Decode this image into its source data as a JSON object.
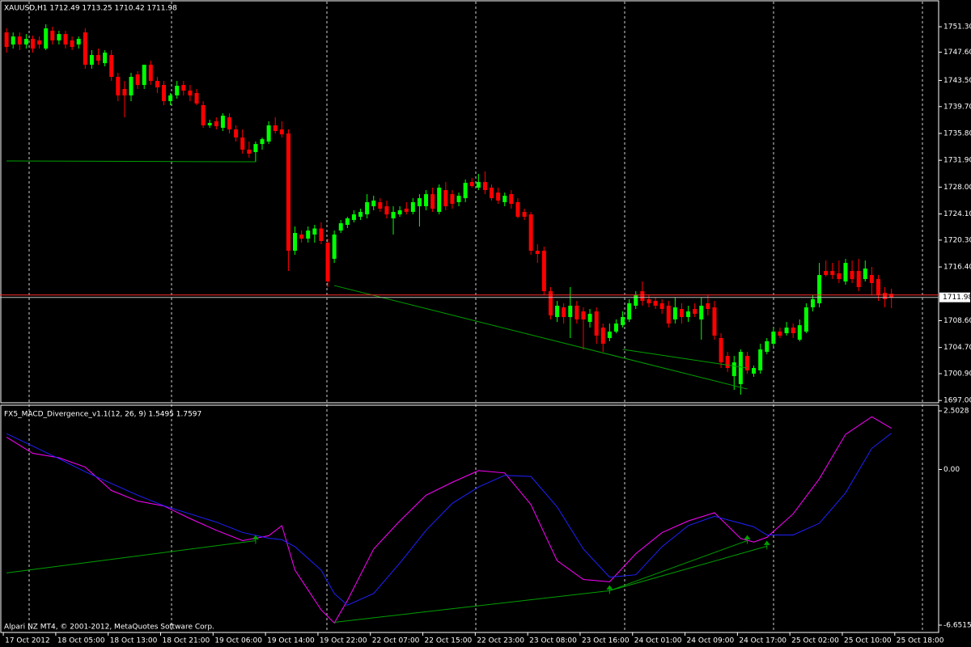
{
  "chart_data": [
    {
      "type": "candlestick",
      "title": "XAUUSD,H1  1712.49 1713.25 1710.42 1711.98",
      "up_color": "#00ff00",
      "down_color": "#ff0000",
      "line_color": "#00a000",
      "price_line_color": "#ff3030",
      "xlim": [
        -1,
        142.2
      ],
      "ylim": [
        1696.67,
        1754.95
      ],
      "yticks": [
        {
          "value": 1751.3,
          "label": "1751.30"
        },
        {
          "value": 1747.6,
          "label": "1747.60"
        },
        {
          "value": 1743.5,
          "label": "1743.50"
        },
        {
          "value": 1739.7,
          "label": "1739.70"
        },
        {
          "value": 1735.8,
          "label": "1735.80"
        },
        {
          "value": 1731.9,
          "label": "1731.90"
        },
        {
          "value": 1728.0,
          "label": "1728.00"
        },
        {
          "value": 1724.1,
          "label": "1724.10"
        },
        {
          "value": 1720.3,
          "label": "1720.30"
        },
        {
          "value": 1716.4,
          "label": "1716.40"
        },
        {
          "value": 1708.6,
          "label": "1708.60"
        },
        {
          "value": 1704.7,
          "label": "1704.70"
        },
        {
          "value": 1700.9,
          "label": "1700.90"
        },
        {
          "value": 1697.0,
          "label": "1697.00"
        }
      ],
      "ohlc": [
        [
          1750.48,
          1751.07,
          1747.54,
          1748.36
        ],
        [
          1748.72,
          1750.48,
          1748.13,
          1749.89
        ],
        [
          1749.89,
          1750.48,
          1747.9,
          1748.72
        ],
        [
          1748.72,
          1750.24,
          1748.13,
          1749.54
        ],
        [
          1749.54,
          1750.01,
          1747.54,
          1748.13
        ],
        [
          1749.31,
          1749.89,
          1748.13,
          1748.72
        ],
        [
          1748.13,
          1751.66,
          1747.9,
          1751.07
        ],
        [
          1750.72,
          1751.3,
          1748.72,
          1749.31
        ],
        [
          1749.31,
          1750.72,
          1748.72,
          1750.24
        ],
        [
          1750.24,
          1750.72,
          1748.13,
          1748.72
        ],
        [
          1749.31,
          1749.89,
          1747.9,
          1748.36
        ],
        [
          1748.72,
          1749.89,
          1748.13,
          1749.54
        ],
        [
          1750.48,
          1751.07,
          1745.19,
          1745.78
        ],
        [
          1745.78,
          1747.9,
          1745.19,
          1747.19
        ],
        [
          1747.19,
          1748.13,
          1745.78,
          1746.37
        ],
        [
          1746.01,
          1747.9,
          1745.55,
          1747.54
        ],
        [
          1747.19,
          1747.9,
          1743.43,
          1744.02
        ],
        [
          1744.02,
          1744.61,
          1740.49,
          1741.32
        ],
        [
          1742.26,
          1743.43,
          1738.14,
          1741.32
        ],
        [
          1741.32,
          1744.61,
          1740.49,
          1744.02
        ],
        [
          1744.37,
          1744.84,
          1742.26,
          1742.84
        ],
        [
          1742.84,
          1745.78,
          1742.26,
          1745.78
        ],
        [
          1745.78,
          1746.37,
          1742.84,
          1743.43
        ],
        [
          1743.43,
          1744.02,
          1741.67,
          1742.49
        ],
        [
          1742.84,
          1743.43,
          1739.91,
          1740.49
        ],
        [
          1740.49,
          1741.67,
          1739.91,
          1741.32
        ],
        [
          1741.32,
          1743.43,
          1740.84,
          1742.73
        ],
        [
          1742.84,
          1743.43,
          1741.32,
          1742.02
        ],
        [
          1742.02,
          1742.84,
          1740.49,
          1741.32
        ],
        [
          1741.67,
          1742.26,
          1739.91,
          1740.14
        ],
        [
          1739.91,
          1740.49,
          1736.62,
          1736.97
        ],
        [
          1736.97,
          1737.79,
          1736.62,
          1737.32
        ],
        [
          1737.56,
          1738.14,
          1736.38,
          1736.85
        ],
        [
          1736.62,
          1738.73,
          1736.15,
          1738.38
        ],
        [
          1738.14,
          1738.73,
          1735.79,
          1736.38
        ],
        [
          1736.38,
          1736.97,
          1734.62,
          1735.21
        ],
        [
          1735.21,
          1736.38,
          1732.86,
          1733.44
        ],
        [
          1733.44,
          1734.62,
          1732.27,
          1732.86
        ],
        [
          1733.09,
          1734.62,
          1731.68,
          1734.26
        ],
        [
          1734.26,
          1735.21,
          1733.44,
          1734.97
        ],
        [
          1734.62,
          1737.56,
          1734.26,
          1736.97
        ],
        [
          1736.97,
          1738.14,
          1735.79,
          1736.15
        ],
        [
          1736.38,
          1737.56,
          1735.21,
          1735.67
        ],
        [
          1735.79,
          1736.38,
          1715.82,
          1718.76
        ],
        [
          1718.76,
          1722.28,
          1718.17,
          1721.34
        ],
        [
          1721.11,
          1721.69,
          1719.93,
          1720.52
        ],
        [
          1720.52,
          1722.28,
          1719.93,
          1721.69
        ],
        [
          1721.11,
          1722.52,
          1719.93,
          1721.99
        ],
        [
          1721.99,
          1722.87,
          1719.7,
          1720.17
        ],
        [
          1719.93,
          1720.52,
          1713.47,
          1714.29
        ],
        [
          1717.58,
          1721.69,
          1716.99,
          1721.11
        ],
        [
          1721.69,
          1723.22,
          1721.34,
          1722.75
        ],
        [
          1722.52,
          1723.69,
          1722.05,
          1723.46
        ],
        [
          1723.22,
          1724.63,
          1722.87,
          1724.04
        ],
        [
          1723.69,
          1724.86,
          1723.22,
          1724.4
        ],
        [
          1724.04,
          1726.98,
          1723.46,
          1725.81
        ],
        [
          1725.22,
          1726.75,
          1724.63,
          1726.04
        ],
        [
          1725.81,
          1726.39,
          1724.4,
          1724.87
        ],
        [
          1725.22,
          1726.04,
          1723.46,
          1724.04
        ],
        [
          1723.46,
          1725.22,
          1721.11,
          1724.4
        ],
        [
          1724.04,
          1725.22,
          1723.69,
          1724.63
        ],
        [
          1724.87,
          1725.81,
          1724.04,
          1724.4
        ],
        [
          1724.4,
          1726.39,
          1724.04,
          1725.81
        ],
        [
          1725.22,
          1726.98,
          1722.28,
          1726.39
        ],
        [
          1725.22,
          1727.57,
          1724.63,
          1726.98
        ],
        [
          1726.98,
          1727.92,
          1724.4,
          1724.87
        ],
        [
          1724.4,
          1728.39,
          1724.04,
          1727.92
        ],
        [
          1727.57,
          1728.74,
          1724.63,
          1725.22
        ],
        [
          1726.98,
          1727.57,
          1724.87,
          1725.57
        ],
        [
          1725.81,
          1727.21,
          1725.22,
          1726.75
        ],
        [
          1726.39,
          1729.1,
          1725.81,
          1728.62
        ],
        [
          1728.74,
          1729.33,
          1727.92,
          1728.16
        ],
        [
          1727.92,
          1729.92,
          1727.57,
          1728.74
        ],
        [
          1728.74,
          1730.27,
          1726.98,
          1727.57
        ],
        [
          1727.92,
          1728.39,
          1726.04,
          1726.39
        ],
        [
          1727.21,
          1727.92,
          1725.57,
          1726.04
        ],
        [
          1725.81,
          1727.21,
          1725.22,
          1726.75
        ],
        [
          1726.98,
          1727.57,
          1724.87,
          1725.57
        ],
        [
          1725.81,
          1726.39,
          1723.46,
          1723.69
        ],
        [
          1724.4,
          1724.87,
          1723.22,
          1723.69
        ],
        [
          1724.04,
          1724.4,
          1718.17,
          1718.76
        ],
        [
          1718.76,
          1719.7,
          1716.99,
          1718.29
        ],
        [
          1718.76,
          1719.34,
          1712.29,
          1712.88
        ],
        [
          1712.88,
          1713.47,
          1708.77,
          1709.36
        ],
        [
          1709.12,
          1711.47,
          1708.41,
          1710.77
        ],
        [
          1710.53,
          1711.12,
          1708.18,
          1709.12
        ],
        [
          1709.12,
          1713.47,
          1706.07,
          1710.77
        ],
        [
          1710.77,
          1711.47,
          1708.18,
          1708.77
        ],
        [
          1709.94,
          1710.53,
          1704.42,
          1708.77
        ],
        [
          1708.41,
          1710.3,
          1707.59,
          1709.59
        ],
        [
          1709.94,
          1710.53,
          1705.24,
          1706.42
        ],
        [
          1707.59,
          1708.18,
          1704.07,
          1705.24
        ],
        [
          1706.07,
          1708.18,
          1705.6,
          1707.01
        ],
        [
          1707.01,
          1708.77,
          1706.77,
          1708.18
        ],
        [
          1707.94,
          1709.94,
          1707.59,
          1709.12
        ],
        [
          1708.77,
          1711.71,
          1708.41,
          1711.12
        ],
        [
          1710.77,
          1712.88,
          1710.3,
          1712.29
        ],
        [
          1712.88,
          1714.29,
          1710.77,
          1711.47
        ],
        [
          1711.71,
          1712.29,
          1710.53,
          1711.12
        ],
        [
          1711.47,
          1711.94,
          1710.3,
          1710.77
        ],
        [
          1711.12,
          1711.71,
          1709.59,
          1710.3
        ],
        [
          1710.77,
          1711.47,
          1707.59,
          1708.18
        ],
        [
          1708.77,
          1711.94,
          1708.18,
          1710.53
        ],
        [
          1710.3,
          1711.12,
          1708.18,
          1709.12
        ],
        [
          1709.12,
          1710.77,
          1708.41,
          1709.94
        ],
        [
          1710.3,
          1711.12,
          1709.12,
          1709.59
        ],
        [
          1708.77,
          1711.94,
          1705.83,
          1710.77
        ],
        [
          1711.12,
          1712.29,
          1709.36,
          1710.3
        ],
        [
          1710.53,
          1711.47,
          1705.83,
          1706.42
        ],
        [
          1706.07,
          1706.77,
          1701.72,
          1702.54
        ],
        [
          1703.48,
          1704.07,
          1701.13,
          1701.72
        ],
        [
          1700.54,
          1703.48,
          1698.54,
          1702.54
        ],
        [
          1699.37,
          1704.42,
          1697.84,
          1704.07
        ],
        [
          1703.48,
          1704.07,
          1700.9,
          1701.37
        ],
        [
          1700.9,
          1702.07,
          1700.43,
          1701.72
        ],
        [
          1701.37,
          1705.24,
          1700.9,
          1704.42
        ],
        [
          1704.07,
          1706.07,
          1703.72,
          1705.6
        ],
        [
          1705.24,
          1707.59,
          1704.89,
          1707.01
        ],
        [
          1707.01,
          1707.59,
          1706.07,
          1706.42
        ],
        [
          1706.77,
          1708.41,
          1706.42,
          1707.59
        ],
        [
          1707.59,
          1708.18,
          1706.07,
          1706.77
        ],
        [
          1705.83,
          1708.77,
          1705.6,
          1707.94
        ],
        [
          1707.01,
          1711.12,
          1706.77,
          1710.53
        ],
        [
          1710.53,
          1712.29,
          1709.94,
          1711.71
        ],
        [
          1711.12,
          1716.99,
          1710.53,
          1715.23
        ],
        [
          1715.82,
          1717.34,
          1715.0,
          1715.23
        ],
        [
          1715.82,
          1716.99,
          1714.64,
          1715.23
        ],
        [
          1715.47,
          1717.34,
          1714.06,
          1714.64
        ],
        [
          1714.29,
          1717.58,
          1713.82,
          1716.99
        ],
        [
          1715.82,
          1717.34,
          1714.06,
          1714.64
        ],
        [
          1715.82,
          1717.58,
          1712.88,
          1713.47
        ],
        [
          1714.64,
          1717.34,
          1714.29,
          1716.17
        ],
        [
          1715.23,
          1716.41,
          1712.29,
          1714.06
        ],
        [
          1714.64,
          1715.23,
          1711.47,
          1712.29
        ],
        [
          1712.64,
          1713.47,
          1710.53,
          1711.71
        ],
        [
          1712.49,
          1713.25,
          1710.42,
          1711.98
        ]
      ],
      "divergence_lines": [
        {
          "x": [
            0,
            38
          ],
          "values": [
            1731.8,
            1731.68
          ]
        },
        {
          "x": [
            50,
            113
          ],
          "values": [
            1713.7,
            1698.66
          ]
        },
        {
          "x": [
            94,
            113
          ],
          "values": [
            1704.42,
            1701.72
          ]
        }
      ]
    },
    {
      "type": "line",
      "title": "FX5_MACD_Divergence_v1.1(12, 26, 9) 1.5495 1.7597",
      "annotations": [
        "Alpari NZ MT4, © 2001-2012, MetaQuotes Software Corp."
      ],
      "line_color": "#00a000",
      "xlim": [
        -1,
        142.2
      ],
      "ylim": [
        -7.24,
        2.78
      ],
      "yticks": [
        2.5028,
        {
          "value": 0,
          "label": "0.00"
        },
        -6.6515
      ],
      "xticks": [
        {
          "value": 0,
          "label": "17 Oct 2012"
        },
        {
          "value": 8,
          "label": "18 Oct 05:00"
        },
        {
          "value": 16,
          "label": "18 Oct 13:00"
        },
        {
          "value": 24,
          "label": "18 Oct 21:00"
        },
        {
          "value": 32,
          "label": "19 Oct 06:00"
        },
        {
          "value": 40,
          "label": "19 Oct 14:00"
        },
        {
          "value": 48,
          "label": "19 Oct 22:00"
        },
        {
          "value": 56,
          "label": "22 Oct 07:00"
        },
        {
          "value": 64,
          "label": "22 Oct 15:00"
        },
        {
          "value": 72,
          "label": "22 Oct 23:00"
        },
        {
          "value": 80,
          "label": "23 Oct 08:00"
        },
        {
          "value": 88,
          "label": "23 Oct 16:00"
        },
        {
          "value": 96,
          "label": "24 Oct 01:00"
        },
        {
          "value": 104,
          "label": "24 Oct 09:00"
        },
        {
          "value": 112,
          "label": "24 Oct 17:00"
        },
        {
          "value": 120,
          "label": "25 Oct 02:00"
        },
        {
          "value": 128,
          "label": "25 Oct 10:00"
        },
        {
          "value": 136,
          "label": "25 Oct 18:00"
        }
      ],
      "x": [
        0,
        4,
        8,
        12,
        16,
        20,
        24,
        28,
        32,
        36,
        40,
        42,
        44,
        48,
        50,
        52,
        56,
        60,
        64,
        68,
        72,
        76,
        80,
        84,
        88,
        92,
        96,
        100,
        104,
        108,
        112,
        114,
        116,
        120,
        124,
        128,
        132,
        135
      ],
      "series": [
        {
          "color": "#ff00ff",
          "values": [
            1.38,
            0.69,
            0.5,
            0.1,
            -0.9,
            -1.35,
            -1.56,
            -2.1,
            -2.6,
            -3.04,
            -2.83,
            -2.4,
            -4.3,
            -6.0,
            -6.56,
            -5.6,
            -3.4,
            -2.2,
            -1.1,
            -0.55,
            -0.05,
            -0.15,
            -1.5,
            -3.9,
            -4.7,
            -4.8,
            -3.6,
            -2.7,
            -2.2,
            -1.85,
            -2.95,
            -3.1,
            -2.9,
            -1.9,
            -0.4,
            1.5,
            2.25,
            1.7597
          ]
        },
        {
          "color": "#2020ff",
          "values": [
            1.53,
            1.0,
            0.46,
            -0.1,
            -0.6,
            -1.1,
            -1.55,
            -1.9,
            -2.25,
            -2.69,
            -2.94,
            -3.0,
            -3.3,
            -4.3,
            -5.3,
            -5.8,
            -5.3,
            -4.0,
            -2.6,
            -1.45,
            -0.75,
            -0.25,
            -0.3,
            -1.6,
            -3.4,
            -4.6,
            -4.5,
            -3.3,
            -2.4,
            -2.0,
            -2.3,
            -2.45,
            -2.8,
            -2.8,
            -2.3,
            -1.0,
            0.9,
            1.5495
          ]
        }
      ],
      "divergence_lines": [
        {
          "x": [
            0,
            38
          ],
          "values": [
            -4.42,
            -3.04
          ]
        },
        {
          "x": [
            50,
            92
          ],
          "values": [
            -6.53,
            -5.18
          ]
        },
        {
          "x": [
            92,
            116
          ],
          "values": [
            -5.18,
            -3.28
          ]
        },
        {
          "x": [
            92,
            113
          ],
          "values": [
            -5.18,
            -3.04
          ]
        }
      ]
    }
  ]
}
